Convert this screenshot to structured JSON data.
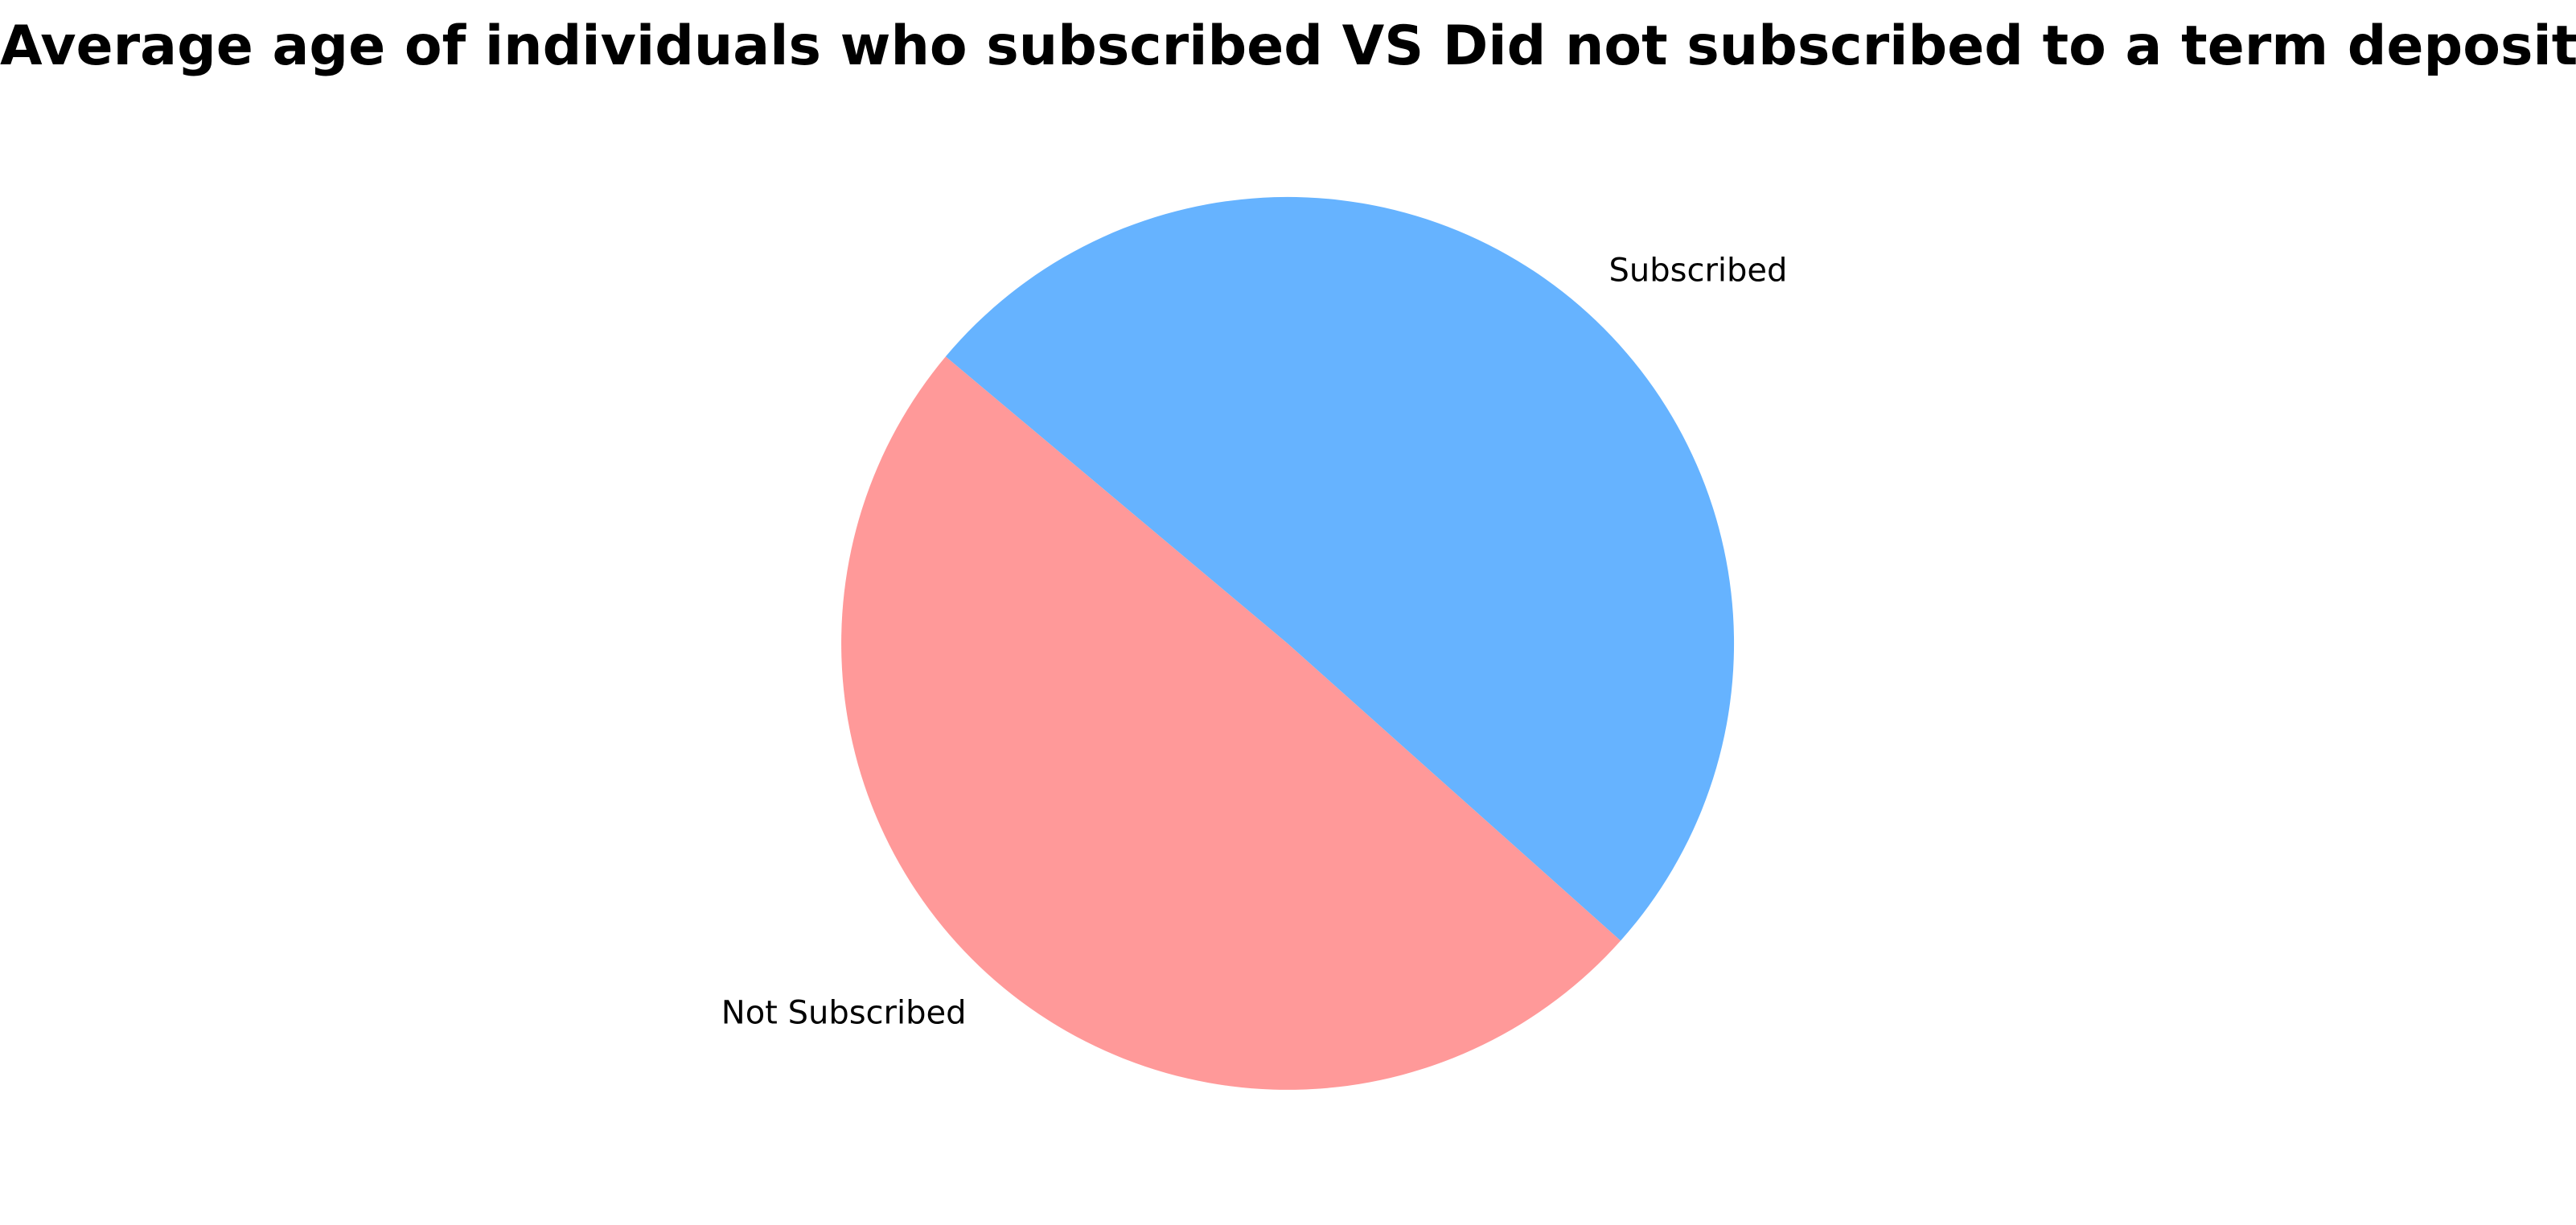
{
  "chart_data": {
    "type": "pie",
    "title": "Average age of individuals who subscribed VS Did not subscribed to a term deposit",
    "slices": [
      {
        "label": "Not Subscribed",
        "value": 40.9,
        "color": "#ff9999"
      },
      {
        "label": "Subscribed",
        "value": 41.7,
        "color": "#66b3ff"
      }
    ],
    "start_angle_deg": 140,
    "direction": "counterclockwise",
    "legend": "none"
  }
}
